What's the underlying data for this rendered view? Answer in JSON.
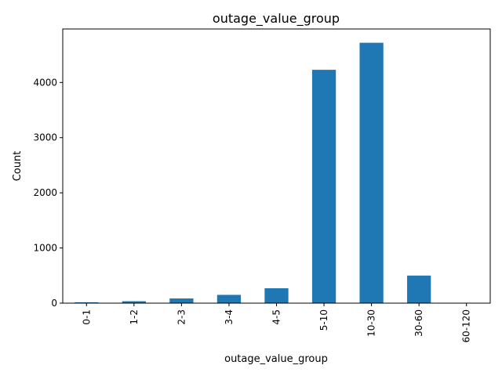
{
  "chart_data": {
    "type": "bar",
    "title": "outage_value_group",
    "xlabel": "outage_value_group",
    "ylabel": "Count",
    "categories": [
      "0-1",
      "1-2",
      "2-3",
      "3-4",
      "4-5",
      "5-10",
      "10-30",
      "30-60",
      "60-120"
    ],
    "values": [
      15,
      35,
      85,
      150,
      270,
      4230,
      4720,
      500,
      2
    ],
    "ylim": [
      0,
      4970
    ],
    "yticks": [
      0,
      1000,
      2000,
      3000,
      4000
    ],
    "grid": false,
    "legend": "none",
    "bar_color": "#1f77b4"
  }
}
